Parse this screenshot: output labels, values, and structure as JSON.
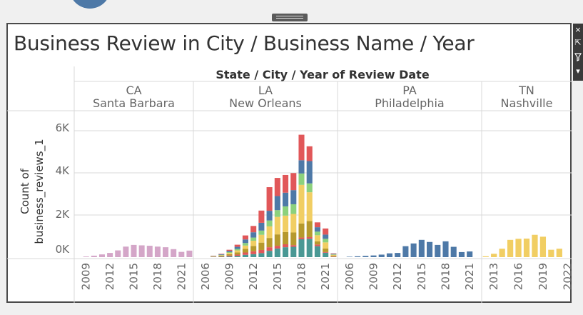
{
  "title": "Business Review in City / Business Name / Year",
  "toolbar": {
    "close_icon": "×",
    "pin_icon": "⇱",
    "filter_icon": "filter-icon",
    "menu_icon": "▾"
  },
  "chart_data": {
    "type": "bar",
    "stacked": true,
    "column_header": "State  /  City  /  Year of Review Date",
    "ylabel": "Count of business_reviews_1",
    "ylabel_lines": [
      "Count of",
      "business_reviews_1"
    ],
    "y_ticks": [
      "0K",
      "2K",
      "4K",
      "6K"
    ],
    "ylim": [
      0,
      6500
    ],
    "colors": {
      "santa_barbara": "#d4a6c8",
      "philadelphia": "#4e79a7",
      "nashville": "#f1ce63",
      "new_orleans_stack": [
        "#499894",
        "#e15759",
        "#b6992d",
        "#f1ce63",
        "#8cd17d",
        "#4e79a7",
        "#e15759"
      ]
    },
    "panels": [
      {
        "state": "CA",
        "city": "Santa Barbara",
        "years": [
          2008,
          2022
        ],
        "x_tick_labels": [
          "2009",
          "2012",
          "2015",
          "2018",
          "2021"
        ],
        "values": [
          0,
          30,
          70,
          130,
          200,
          320,
          500,
          580,
          560,
          540,
          500,
          470,
          380,
          250,
          310
        ]
      },
      {
        "state": "LA",
        "city": "New Orleans",
        "years": [
          2005,
          2022
        ],
        "x_tick_labels": [
          "2006",
          "2009",
          "2012",
          "2015",
          "2018",
          "2021"
        ],
        "stack_series": [
          [
            0,
            0,
            10,
            20,
            40,
            60,
            110,
            140,
            190,
            300,
            410,
            470,
            490,
            850,
            870,
            520,
            210,
            10
          ],
          [
            0,
            0,
            10,
            20,
            40,
            60,
            110,
            140,
            150,
            170,
            130,
            140,
            80,
            80,
            80,
            80,
            30,
            20
          ],
          [
            0,
            0,
            10,
            30,
            60,
            100,
            170,
            250,
            350,
            440,
            540,
            580,
            600,
            670,
            760,
            150,
            170,
            40
          ],
          [
            0,
            0,
            10,
            20,
            60,
            100,
            160,
            250,
            370,
            550,
            830,
            780,
            880,
            1830,
            1370,
            290,
            290,
            40
          ],
          [
            0,
            0,
            10,
            20,
            40,
            70,
            120,
            150,
            200,
            280,
            320,
            440,
            460,
            540,
            420,
            170,
            170,
            20
          ],
          [
            0,
            0,
            10,
            30,
            60,
            100,
            170,
            250,
            370,
            460,
            670,
            650,
            670,
            630,
            1060,
            210,
            200,
            30
          ],
          [
            0,
            0,
            10,
            20,
            50,
            100,
            190,
            300,
            580,
            1120,
            860,
            840,
            810,
            1210,
            700,
            230,
            290,
            20
          ]
        ]
      },
      {
        "state": "PA",
        "city": "Philadelphia",
        "years": [
          2005,
          2022
        ],
        "x_tick_labels": [
          "2006",
          "2009",
          "2012",
          "2015",
          "2018",
          "2021"
        ],
        "values": [
          0,
          20,
          40,
          60,
          80,
          120,
          180,
          200,
          520,
          650,
          820,
          720,
          580,
          750,
          490,
          240,
          270,
          0
        ]
      },
      {
        "state": "TN",
        "city": "Nashville",
        "years": [
          2012,
          2022
        ],
        "x_tick_labels": [
          "2013",
          "2016",
          "2019",
          "2022"
        ],
        "values": [
          40,
          160,
          400,
          820,
          870,
          880,
          1060,
          970,
          350,
          400,
          0
        ]
      }
    ]
  }
}
